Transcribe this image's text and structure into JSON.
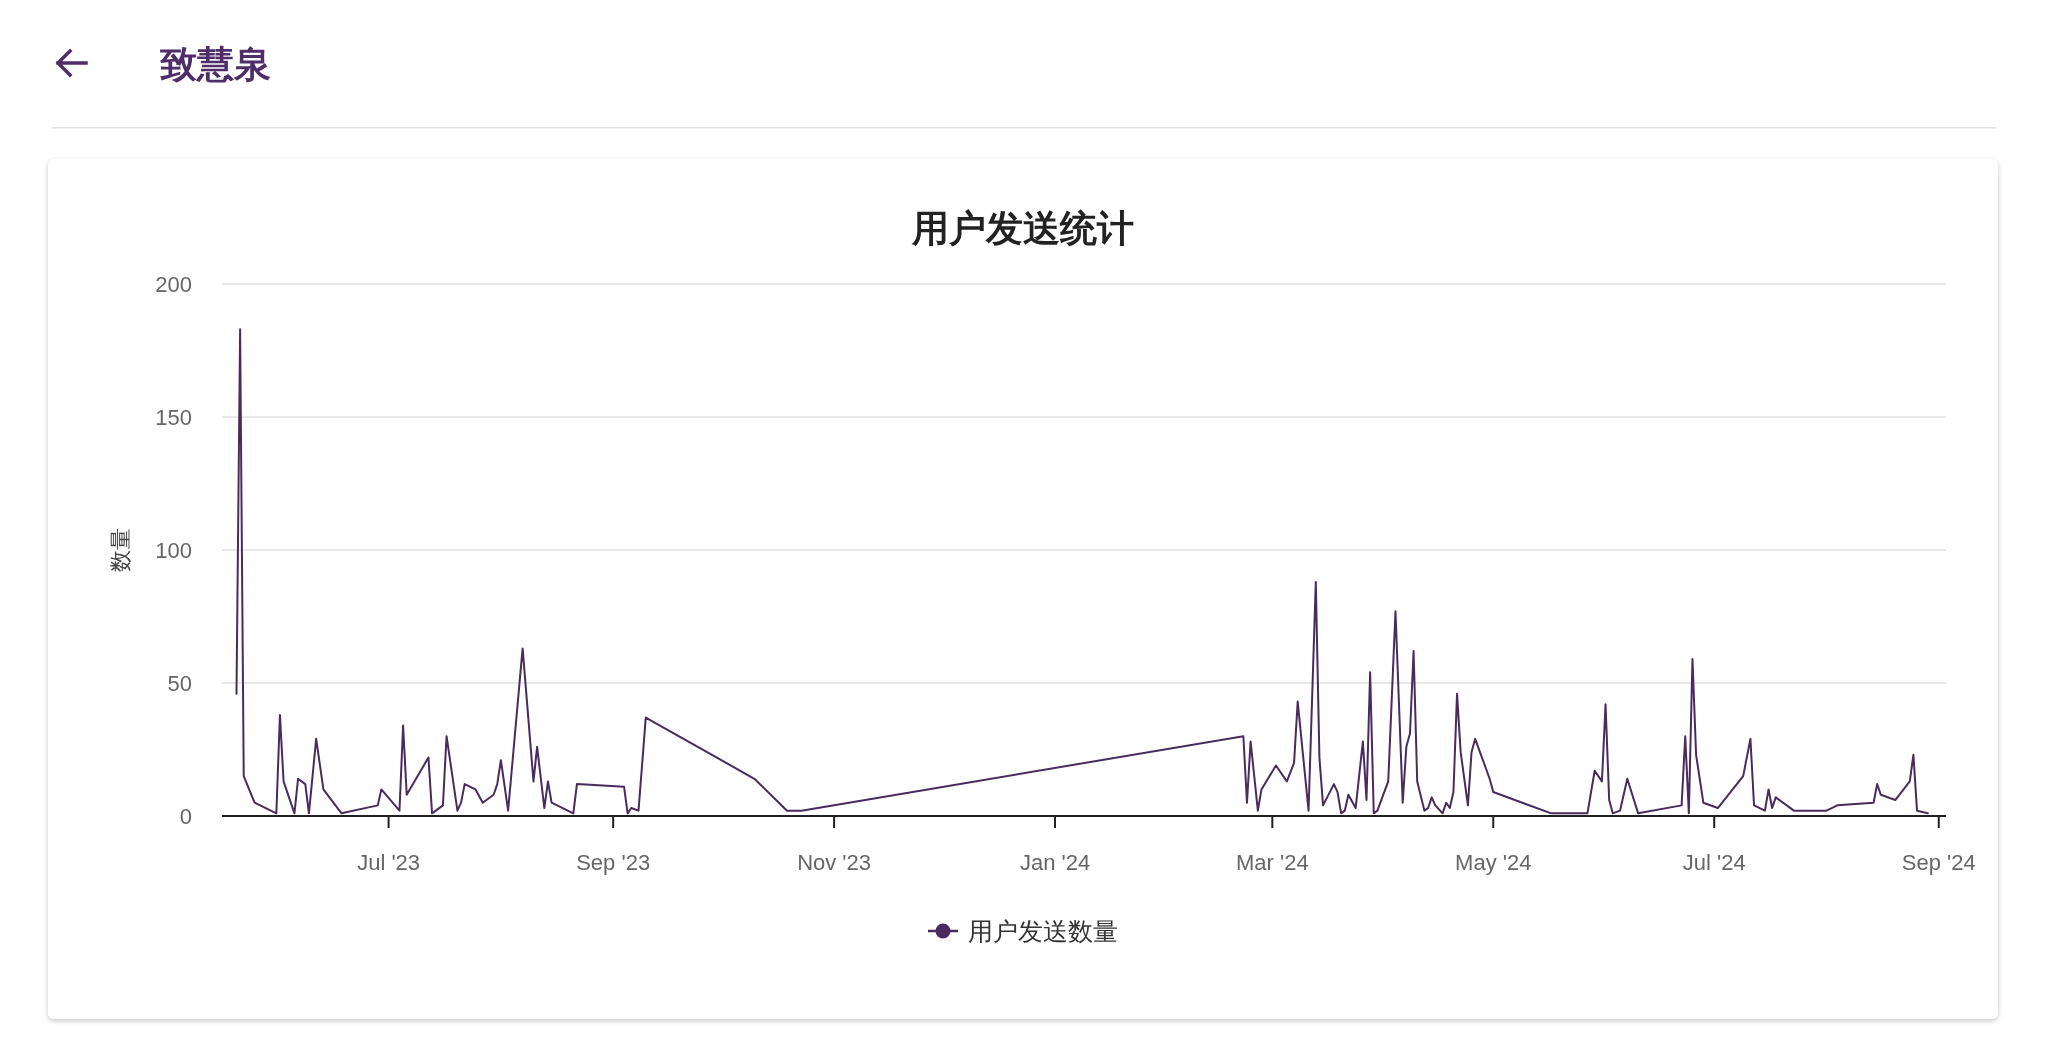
{
  "chart_data": {
    "type": "line",
    "title": "用户发送统计",
    "ylabel": "数量",
    "annotations": [
      "致慧泉"
    ],
    "x": [
      "2023-05-20",
      "2023-05-21",
      "2023-05-22",
      "2023-05-25",
      "2023-05-31",
      "2023-06-01",
      "2023-06-02",
      "2023-06-05",
      "2023-06-06",
      "2023-06-08",
      "2023-06-09",
      "2023-06-11",
      "2023-06-13",
      "2023-06-18",
      "2023-06-28",
      "2023-06-29",
      "2023-07-04",
      "2023-07-05",
      "2023-07-06",
      "2023-07-12",
      "2023-07-13",
      "2023-07-16",
      "2023-07-17",
      "2023-07-20",
      "2023-07-21",
      "2023-07-22",
      "2023-07-25",
      "2023-07-27",
      "2023-07-30",
      "2023-07-31",
      "2023-08-01",
      "2023-08-03",
      "2023-08-07",
      "2023-08-10",
      "2023-08-11",
      "2023-08-13",
      "2023-08-14",
      "2023-08-15",
      "2023-08-21",
      "2023-08-22",
      "2023-09-04",
      "2023-09-05",
      "2023-09-06",
      "2023-09-08",
      "2023-09-10",
      "2023-10-10",
      "2023-10-19",
      "2023-10-23",
      "2024-02-22",
      "2024-02-23",
      "2024-02-24",
      "2024-02-26",
      "2024-02-27",
      "2024-03-02",
      "2024-03-05",
      "2024-03-07",
      "2024-03-08",
      "2024-03-11",
      "2024-03-13",
      "2024-03-14",
      "2024-03-15",
      "2024-03-18",
      "2024-03-19",
      "2024-03-20",
      "2024-03-21",
      "2024-03-22",
      "2024-03-24",
      "2024-03-26",
      "2024-03-27",
      "2024-03-28",
      "2024-03-29",
      "2024-03-30",
      "2024-04-02",
      "2024-04-04",
      "2024-04-06",
      "2024-04-07",
      "2024-04-08",
      "2024-04-09",
      "2024-04-10",
      "2024-04-12",
      "2024-04-13",
      "2024-04-14",
      "2024-04-15",
      "2024-04-17",
      "2024-04-18",
      "2024-04-19",
      "2024-04-20",
      "2024-04-21",
      "2024-04-22",
      "2024-04-24",
      "2024-04-25",
      "2024-04-26",
      "2024-04-30",
      "2024-05-01",
      "2024-05-17",
      "2024-05-27",
      "2024-05-29",
      "2024-05-31",
      "2024-06-01",
      "2024-06-02",
      "2024-06-03",
      "2024-06-05",
      "2024-06-07",
      "2024-06-10",
      "2024-06-22",
      "2024-06-23",
      "2024-06-24",
      "2024-06-25",
      "2024-06-26",
      "2024-06-28",
      "2024-07-02",
      "2024-07-09",
      "2024-07-11",
      "2024-07-12",
      "2024-07-15",
      "2024-07-16",
      "2024-07-17",
      "2024-07-18",
      "2024-07-23",
      "2024-08-01",
      "2024-08-04",
      "2024-08-14",
      "2024-08-15",
      "2024-08-16",
      "2024-08-20",
      "2024-08-24",
      "2024-08-25",
      "2024-08-26",
      "2024-08-29"
    ],
    "series": [
      {
        "name": "用户发送数量",
        "color": "#4a2b5f",
        "values": [
          46,
          183,
          15,
          5,
          1,
          38,
          13,
          1,
          14,
          12,
          1,
          29,
          10,
          1,
          4,
          10,
          2,
          34,
          8,
          22,
          1,
          4,
          30,
          2,
          5,
          12,
          10,
          5,
          8,
          12,
          21,
          2,
          63,
          13,
          26,
          3,
          13,
          5,
          1,
          12,
          11,
          1,
          3,
          2,
          37,
          14,
          2,
          2,
          30,
          5,
          28,
          2,
          10,
          19,
          13,
          20,
          43,
          2,
          88,
          22,
          4,
          12,
          9,
          1,
          2,
          8,
          3,
          28,
          6,
          54,
          1,
          2,
          13,
          77,
          5,
          26,
          31,
          62,
          13,
          2,
          3,
          7,
          4,
          1,
          5,
          3,
          9,
          46,
          24,
          4,
          24,
          29,
          14,
          9,
          1,
          1,
          17,
          13,
          42,
          6,
          1,
          2,
          14,
          1,
          4,
          30,
          1,
          59,
          23,
          5,
          3,
          15,
          29,
          4,
          2,
          10,
          3,
          7,
          2,
          2,
          4,
          5,
          12,
          8,
          6,
          13,
          23,
          2,
          1
        ]
      }
    ],
    "xlim": [
      "2023-05-16",
      "2024-09-03"
    ],
    "xticks": [
      {
        "value": "2023-07-01",
        "label": "Jul '23"
      },
      {
        "value": "2023-09-01",
        "label": "Sep '23"
      },
      {
        "value": "2023-11-01",
        "label": "Nov '23"
      },
      {
        "value": "2024-01-01",
        "label": "Jan '24"
      },
      {
        "value": "2024-03-01",
        "label": "Mar '24"
      },
      {
        "value": "2024-05-01",
        "label": "May '24"
      },
      {
        "value": "2024-07-01",
        "label": "Jul '24"
      },
      {
        "value": "2024-09-01",
        "label": "Sep '24"
      }
    ],
    "ylim": [
      0,
      200
    ],
    "yticks": [
      0,
      50,
      100,
      150,
      200
    ],
    "grid": "y",
    "legend": "bottom",
    "marker": "none"
  }
}
